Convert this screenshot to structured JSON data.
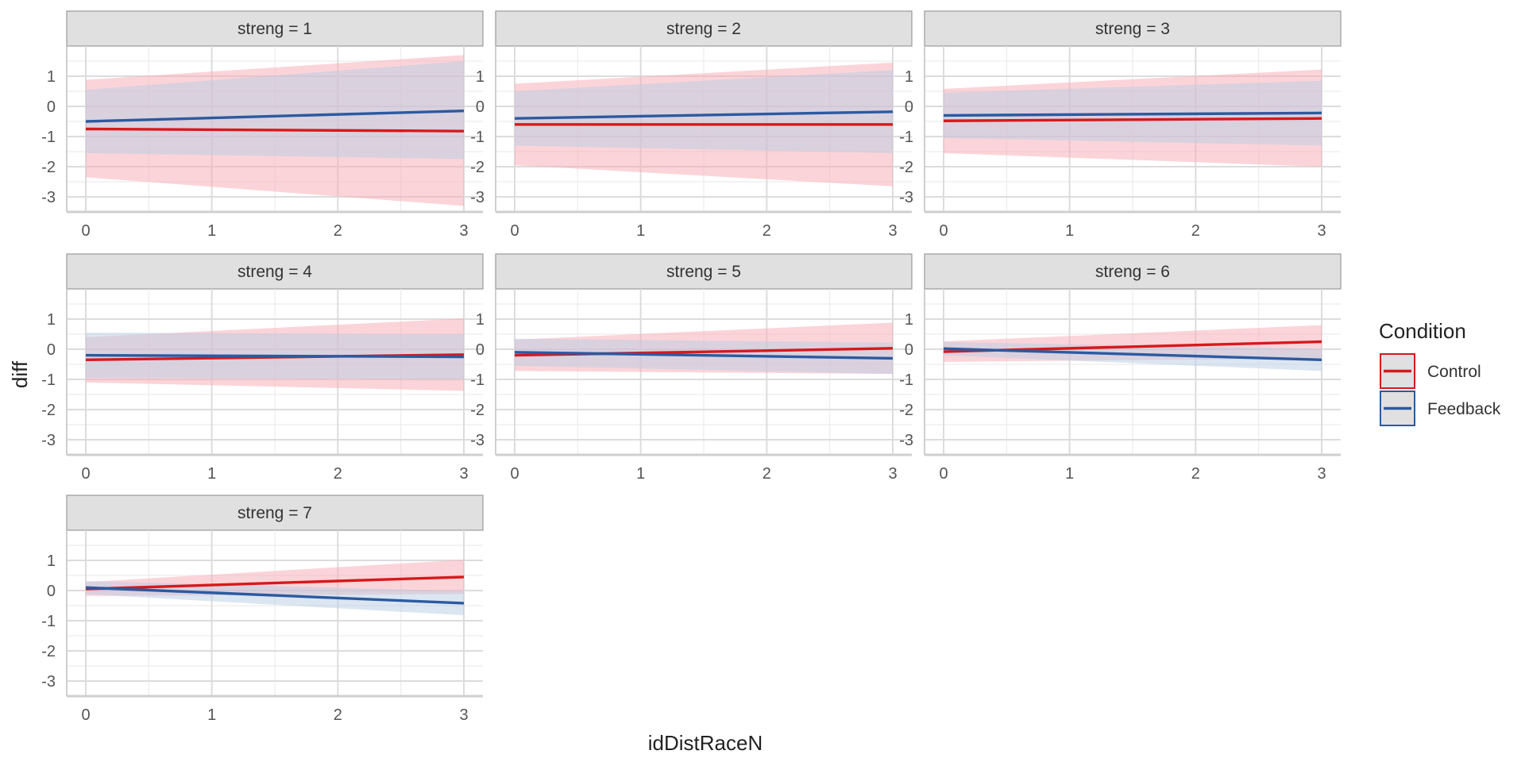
{
  "chart_data": {
    "type": "line",
    "facet_var": "streng",
    "xlabel": "idDistRaceN",
    "ylabel": "diff",
    "xlim": [
      0,
      3
    ],
    "ylim": [
      -3.5,
      2
    ],
    "x_ticks": [
      0,
      1,
      2,
      3
    ],
    "y_ticks": [
      -3,
      -2,
      -1,
      0,
      1
    ],
    "grid": true,
    "legend": {
      "title": "Condition",
      "placement": "right",
      "entries": [
        {
          "name": "Control",
          "color": "#d7191c",
          "fill": "#f7a9b3"
        },
        {
          "name": "Feedback",
          "color": "#2c5aa0",
          "fill": "#b9cde6"
        }
      ]
    },
    "facets": [
      {
        "label": "streng = 1",
        "series": [
          {
            "name": "Control",
            "x": [
              0,
              3
            ],
            "y": [
              -0.75,
              -0.82
            ],
            "lower": [
              -2.35,
              -3.3
            ],
            "upper": [
              0.88,
              1.7
            ]
          },
          {
            "name": "Feedback",
            "x": [
              0,
              3
            ],
            "y": [
              -0.5,
              -0.15
            ],
            "lower": [
              -1.55,
              -1.75
            ],
            "upper": [
              0.55,
              1.5
            ]
          }
        ]
      },
      {
        "label": "streng = 2",
        "series": [
          {
            "name": "Control",
            "x": [
              0,
              3
            ],
            "y": [
              -0.6,
              -0.6
            ],
            "lower": [
              -1.95,
              -2.65
            ],
            "upper": [
              0.75,
              1.45
            ]
          },
          {
            "name": "Feedback",
            "x": [
              0,
              3
            ],
            "y": [
              -0.4,
              -0.18
            ],
            "lower": [
              -1.3,
              -1.55
            ],
            "upper": [
              0.5,
              1.2
            ]
          }
        ]
      },
      {
        "label": "streng = 3",
        "series": [
          {
            "name": "Control",
            "x": [
              0,
              3
            ],
            "y": [
              -0.48,
              -0.4
            ],
            "lower": [
              -1.55,
              -2.0
            ],
            "upper": [
              0.58,
              1.22
            ]
          },
          {
            "name": "Feedback",
            "x": [
              0,
              3
            ],
            "y": [
              -0.3,
              -0.22
            ],
            "lower": [
              -1.05,
              -1.3
            ],
            "upper": [
              0.45,
              0.85
            ]
          }
        ]
      },
      {
        "label": "streng = 4",
        "series": [
          {
            "name": "Control",
            "x": [
              0,
              3
            ],
            "y": [
              -0.35,
              -0.18
            ],
            "lower": [
              -1.1,
              -1.38
            ],
            "upper": [
              0.4,
              1.02
            ]
          },
          {
            "name": "Feedback",
            "x": [
              0,
              3
            ],
            "y": [
              -0.2,
              -0.25
            ],
            "lower": [
              -0.95,
              -1.0
            ],
            "upper": [
              0.55,
              0.5
            ]
          }
        ]
      },
      {
        "label": "streng = 5",
        "series": [
          {
            "name": "Control",
            "x": [
              0,
              3
            ],
            "y": [
              -0.2,
              0.03
            ],
            "lower": [
              -0.72,
              -0.82
            ],
            "upper": [
              0.32,
              0.88
            ]
          },
          {
            "name": "Feedback",
            "x": [
              0,
              3
            ],
            "y": [
              -0.1,
              -0.3
            ],
            "lower": [
              -0.55,
              -0.82
            ],
            "upper": [
              0.35,
              0.22
            ]
          }
        ]
      },
      {
        "label": "streng = 6",
        "series": [
          {
            "name": "Control",
            "x": [
              0,
              3
            ],
            "y": [
              -0.08,
              0.25
            ],
            "lower": [
              -0.42,
              -0.3
            ],
            "upper": [
              0.26,
              0.8
            ]
          },
          {
            "name": "Feedback",
            "x": [
              0,
              3
            ],
            "y": [
              0.02,
              -0.35
            ],
            "lower": [
              -0.2,
              -0.72
            ],
            "upper": [
              0.24,
              0.02
            ]
          }
        ]
      },
      {
        "label": "streng = 7",
        "series": [
          {
            "name": "Control",
            "x": [
              0,
              3
            ],
            "y": [
              0.05,
              0.45
            ],
            "lower": [
              -0.18,
              -0.12
            ],
            "upper": [
              0.28,
              1.02
            ]
          },
          {
            "name": "Feedback",
            "x": [
              0,
              3
            ],
            "y": [
              0.1,
              -0.42
            ],
            "lower": [
              -0.12,
              -0.82
            ],
            "upper": [
              0.32,
              -0.02
            ]
          }
        ]
      }
    ]
  }
}
